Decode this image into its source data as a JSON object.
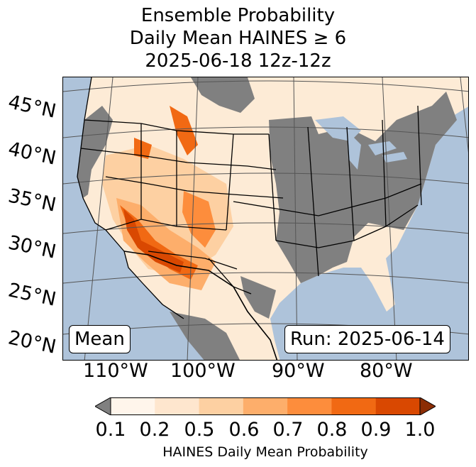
{
  "title": {
    "line1": "Ensemble Probability",
    "line2": "Daily Mean HAINES ≥ 6",
    "line3": "2025-06-18 12z-12z"
  },
  "map": {
    "ocean_color": "#aec3da",
    "no_data_color": "#808080",
    "border_color": "#000000",
    "graticule_color": "#555555",
    "lat_labels": [
      "45°N",
      "40°N",
      "35°N",
      "30°N",
      "25°N",
      "20°N"
    ],
    "lon_labels": [
      "110°W",
      "100°W",
      "90°W",
      "80°W"
    ],
    "stat_label": "Mean",
    "run_label": "Run: 2025-06-14"
  },
  "colorbar": {
    "ticks": [
      "0.1",
      "0.2",
      "0.5",
      "0.6",
      "0.7",
      "0.8",
      "0.9",
      "1.0"
    ],
    "colors": [
      "#fff5eb",
      "#fee6ce",
      "#fdd0a2",
      "#fdae6b",
      "#fd8d3c",
      "#f16913",
      "#d94801",
      "#8c2d04"
    ],
    "under_color": "#808080",
    "label": "HAINES Daily Mean Probability"
  }
}
